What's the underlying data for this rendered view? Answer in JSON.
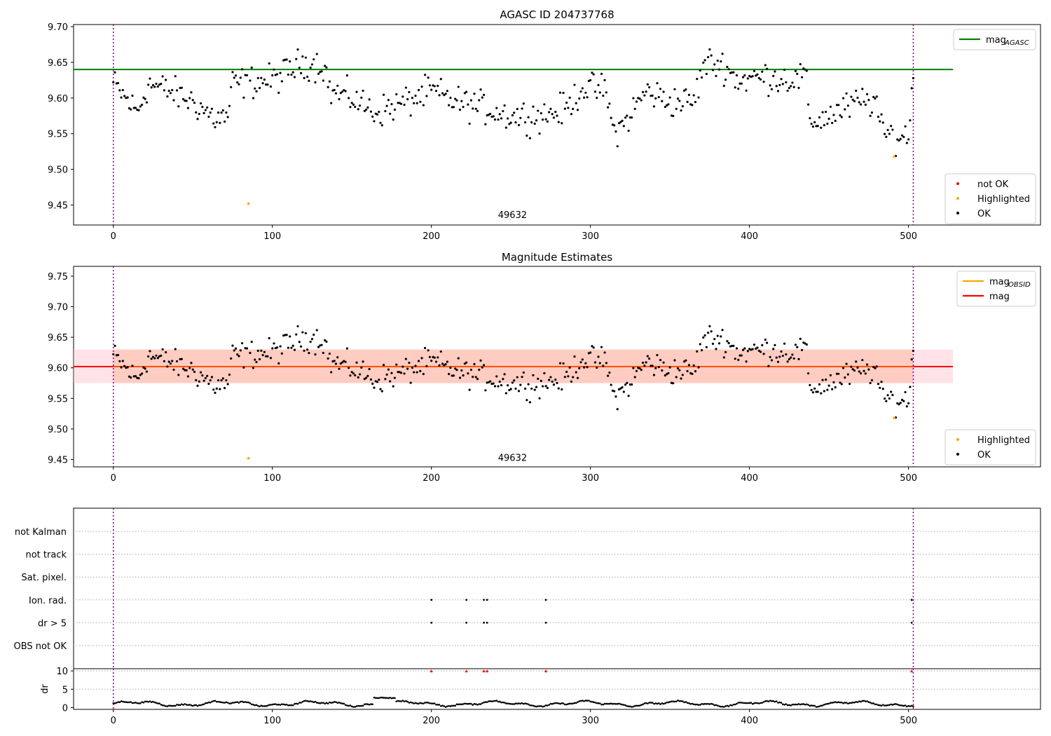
{
  "chart_data": [
    {
      "type": "scatter",
      "title": "AGASC ID 204737768",
      "xlim": [
        -25,
        583
      ],
      "ylim": [
        9.422,
        9.703
      ],
      "xticks": [
        0,
        100,
        200,
        300,
        400,
        500
      ],
      "yticks": [
        9.45,
        9.5,
        9.55,
        9.6,
        9.65,
        9.7
      ],
      "ytick_labels": [
        "9.45",
        "9.50",
        "9.55",
        "9.60",
        "9.65",
        "9.70"
      ],
      "annotation": {
        "text": "49632",
        "x": 251,
        "y": 9.432
      },
      "vlines": [
        0,
        503
      ],
      "hline": {
        "y": 9.64,
        "x": [
          -25,
          528
        ],
        "label": "mag",
        "label_sub": "AGASC",
        "color": "#008000"
      },
      "legend_top": {
        "position": "upper-right",
        "entries": [
          {
            "label": "mag",
            "sub": "AGASC",
            "kind": "line",
            "color": "#008000"
          }
        ]
      },
      "legend_bottom": {
        "position": "lower-right",
        "entries": [
          {
            "label": "not OK",
            "kind": "dot",
            "color": "#ff0000"
          },
          {
            "label": "Highlighted",
            "kind": "dot",
            "color": "#ffa500"
          },
          {
            "label": "OK",
            "kind": "dot",
            "color": "#000000"
          }
        ]
      },
      "series": [
        {
          "name": "OK",
          "color": "#000000",
          "summary": "≈500 points, y from 9.53 to 9.67 around 9.60"
        },
        {
          "name": "Highlighted",
          "color": "#ffa500",
          "x": [
            85,
            491
          ],
          "y": [
            9.452,
            9.518
          ]
        }
      ]
    },
    {
      "type": "scatter",
      "title": "Magnitude Estimates",
      "xlim": [
        -25,
        583
      ],
      "ylim": [
        9.438,
        9.766
      ],
      "xticks": [
        0,
        100,
        200,
        300,
        400,
        500
      ],
      "yticks": [
        9.45,
        9.5,
        9.55,
        9.6,
        9.65,
        9.7,
        9.75
      ],
      "ytick_labels": [
        "9.45",
        "9.50",
        "9.55",
        "9.60",
        "9.65",
        "9.70",
        "9.75"
      ],
      "annotation": {
        "text": "49632",
        "x": 251,
        "y": 9.448
      },
      "vlines": [
        0,
        503
      ],
      "hline": {
        "y": 9.602,
        "x": [
          -25,
          528
        ],
        "label": "mag",
        "color": "#ff0000"
      },
      "bands": [
        {
          "ymin": 9.575,
          "ymax": 9.63,
          "color": "#ffc0cb",
          "opacity": 0.45
        },
        {
          "ymin": 9.575,
          "ymax": 9.63,
          "x": [
            -25,
            528
          ],
          "color": "#ffa07a",
          "opacity": 0.35
        }
      ],
      "legend_top": {
        "position": "upper-right",
        "entries": [
          {
            "label": "mag",
            "sub": "OBSID",
            "kind": "line",
            "color": "#ffa500"
          },
          {
            "label": "mag",
            "kind": "line",
            "color": "#ff0000"
          }
        ]
      },
      "legend_bottom": {
        "position": "lower-right",
        "entries": [
          {
            "label": "Highlighted",
            "kind": "dot",
            "color": "#ffa500"
          },
          {
            "label": "OK",
            "kind": "dot",
            "color": "#000000"
          }
        ]
      },
      "series": [
        {
          "name": "OK",
          "color": "#000000",
          "summary": "same points as the upper panel"
        },
        {
          "name": "Highlighted",
          "color": "#ffa500",
          "x": [
            85,
            491
          ],
          "y": [
            9.452,
            9.518
          ]
        }
      ]
    },
    {
      "type": "scatter",
      "xlim": [
        -25,
        583
      ],
      "categories": [
        "not Kalman",
        "not track",
        "Sat. pixel.",
        "Ion. rad.",
        "dr > 5",
        "OBS not OK"
      ],
      "vlines": [
        0,
        503
      ],
      "flags": {
        "Ion. rad.": [
          200,
          222,
          233,
          235,
          272,
          502
        ],
        "dr > 5": [
          200,
          222,
          233,
          235,
          272,
          502
        ]
      }
    },
    {
      "type": "scatter",
      "xlim": [
        -25,
        583
      ],
      "ylim": [
        -0.5,
        10.6
      ],
      "xticks": [
        0,
        100,
        200,
        300,
        400,
        500
      ],
      "yticks": [
        0,
        5,
        10
      ],
      "ytick_labels": [
        "0",
        "5",
        "10"
      ],
      "ylabel": "dr",
      "vlines": [
        0,
        503
      ],
      "series": [
        {
          "name": "dr",
          "color": "#000000",
          "summary": "values 0–2.7 across x = 0–503, a bump near x = 165–175"
        },
        {
          "name": "clipped",
          "color": "#ff0000",
          "x": [
            200,
            222,
            233,
            235,
            272,
            502
          ],
          "y": [
            10,
            10,
            10,
            10,
            10,
            10
          ]
        }
      ]
    }
  ]
}
